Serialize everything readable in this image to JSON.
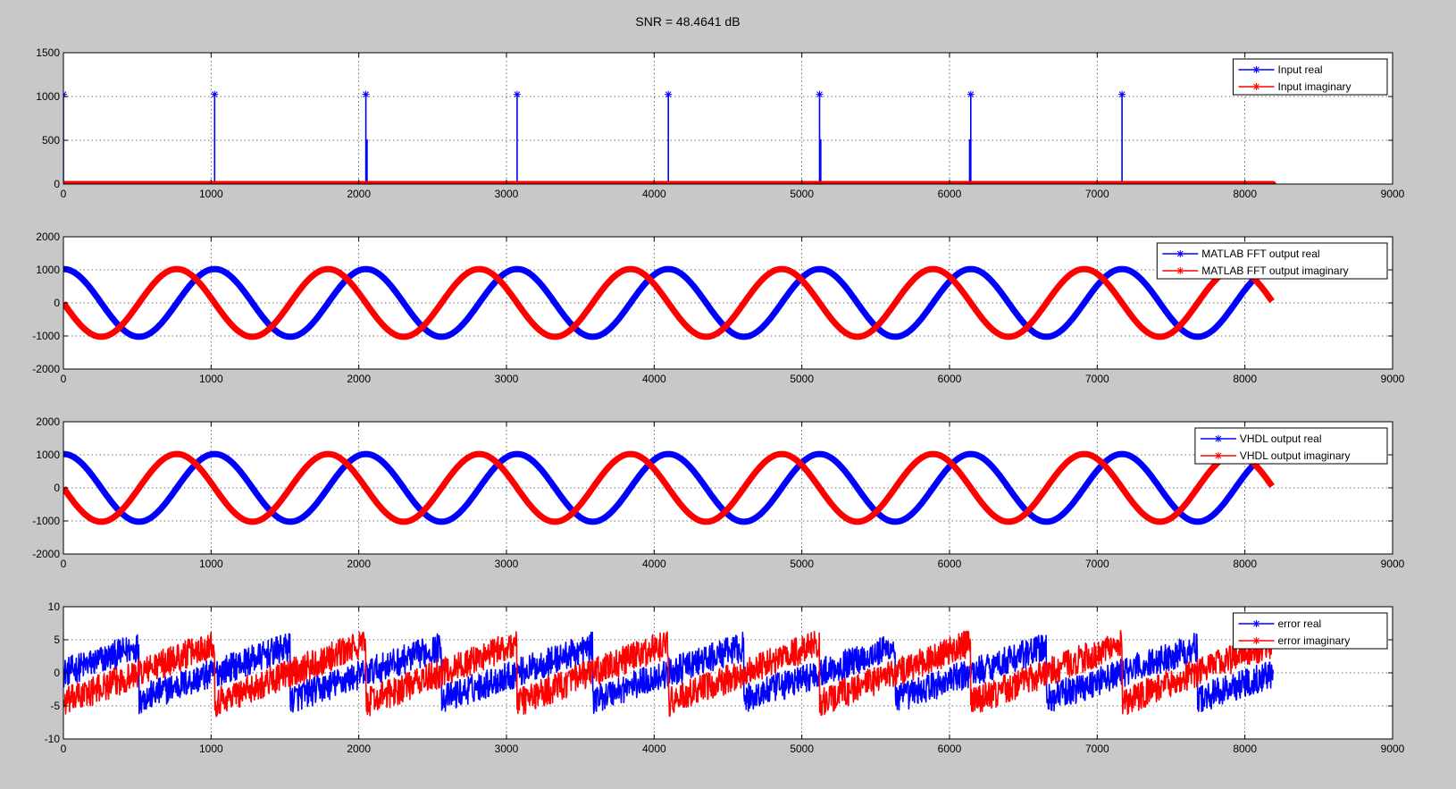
{
  "figure": {
    "title": "SNR = 48.4641 dB",
    "background": "#c8c8c8"
  },
  "chart_data": [
    {
      "type": "line",
      "panel": "input",
      "xlim": [
        0,
        9000
      ],
      "ylim": [
        0,
        1500
      ],
      "xticks": [
        0,
        1000,
        2000,
        3000,
        4000,
        5000,
        6000,
        7000,
        8000,
        9000
      ],
      "yticks": [
        0,
        500,
        1000,
        1500
      ],
      "grid": true,
      "legend_position": "top-right",
      "n_samples": 8192,
      "series": [
        {
          "name": "Input real",
          "color": "#0000ff",
          "kind": "impulses",
          "impulses": [
            {
              "x": 0,
              "y": 1024
            },
            {
              "x": 1024,
              "y": 1024
            },
            {
              "x": 2048,
              "y": 1024
            },
            {
              "x": 2056,
              "y": 512
            },
            {
              "x": 3072,
              "y": 1024
            },
            {
              "x": 4096,
              "y": 1024
            },
            {
              "x": 5120,
              "y": 1024
            },
            {
              "x": 5128,
              "y": 512
            },
            {
              "x": 6136,
              "y": 512
            },
            {
              "x": 6144,
              "y": 1024
            },
            {
              "x": 7168,
              "y": 1024
            }
          ]
        },
        {
          "name": "Input imaginary",
          "color": "#ff0000",
          "kind": "constant",
          "value": 0
        }
      ]
    },
    {
      "type": "line",
      "panel": "matlab",
      "xlim": [
        0,
        9000
      ],
      "ylim": [
        -2000,
        2000
      ],
      "xticks": [
        0,
        1000,
        2000,
        3000,
        4000,
        5000,
        6000,
        7000,
        8000,
        9000
      ],
      "yticks": [
        -2000,
        -1000,
        0,
        1000,
        2000
      ],
      "grid": true,
      "legend_position": "top-right",
      "n_samples": 8192,
      "series": [
        {
          "name": "MATLAB FFT output real",
          "color": "#0000ff",
          "kind": "cosine",
          "amplitude": 1024,
          "period": 1024
        },
        {
          "name": "MATLAB FFT output imaginary",
          "color": "#ff0000",
          "kind": "negsine",
          "amplitude": 1024,
          "period": 1024
        }
      ]
    },
    {
      "type": "line",
      "panel": "vhdl",
      "xlim": [
        0,
        9000
      ],
      "ylim": [
        -2000,
        2000
      ],
      "xticks": [
        0,
        1000,
        2000,
        3000,
        4000,
        5000,
        6000,
        7000,
        8000,
        9000
      ],
      "yticks": [
        -2000,
        -1000,
        0,
        1000,
        2000
      ],
      "grid": true,
      "legend_position": "top-right",
      "n_samples": 8192,
      "series": [
        {
          "name": "VHDL output real",
          "color": "#0000ff",
          "kind": "cosine",
          "amplitude": 1024,
          "period": 1024
        },
        {
          "name": "VHDL output imaginary",
          "color": "#ff0000",
          "kind": "negsine",
          "amplitude": 1024,
          "period": 1024
        }
      ]
    },
    {
      "type": "scatter",
      "panel": "error",
      "xlim": [
        0,
        9000
      ],
      "ylim": [
        -10,
        10
      ],
      "xticks": [
        0,
        1000,
        2000,
        3000,
        4000,
        5000,
        6000,
        7000,
        8000,
        9000
      ],
      "yticks": [
        -10,
        -5,
        0,
        5,
        10
      ],
      "grid": true,
      "legend_position": "top-right",
      "n_samples": 8192,
      "series": [
        {
          "name": "error real",
          "color": "#0000ff",
          "kind": "sawtooth",
          "amplitude": 4,
          "period": 1024,
          "phase": 0,
          "spread": 2.2
        },
        {
          "name": "error imaginary",
          "color": "#ff0000",
          "kind": "sawtooth",
          "amplitude": 4.5,
          "period": 1024,
          "phase": 512,
          "spread": 2.2
        }
      ]
    }
  ]
}
